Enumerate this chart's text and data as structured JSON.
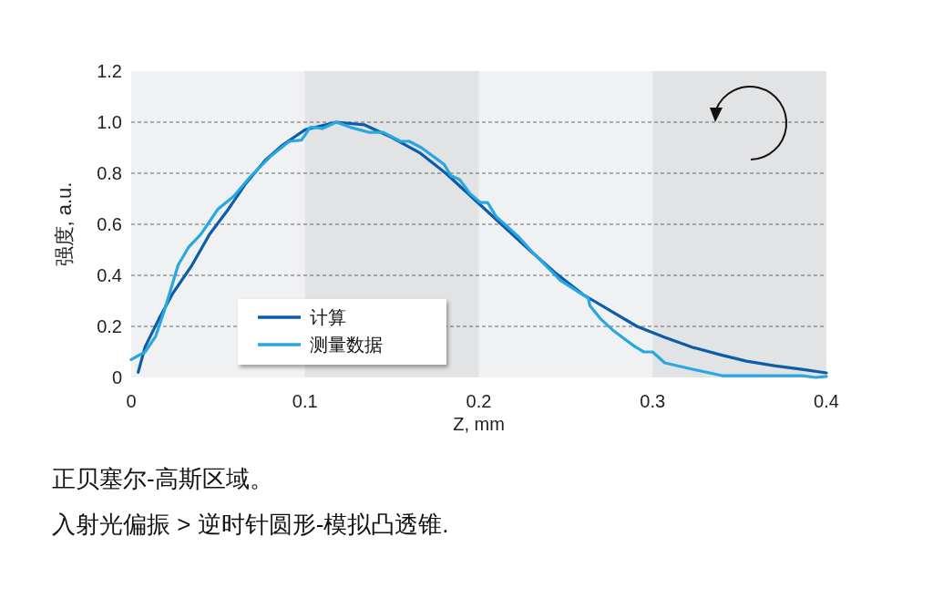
{
  "chart_data": {
    "type": "line",
    "xlabel": "Z, mm",
    "ylabel": "强度, a.u.",
    "xlim": [
      0,
      0.4
    ],
    "xticks": [
      0,
      0.1,
      0.2,
      0.3,
      0.4
    ],
    "ylim": [
      0,
      1.2
    ],
    "yticks": [
      0,
      0.2,
      0.4,
      0.6,
      0.8,
      {
        "value": 1,
        "label": "1.0"
      },
      1.2
    ],
    "grid": "y",
    "legend": "bottom left",
    "line_style": "solid",
    "bands": [
      {
        "axis": "x",
        "from": 0.1,
        "to": 0.2,
        "color": "#e2e3e5"
      },
      {
        "axis": "x",
        "from": 0.3,
        "to": 0.4,
        "color": "#e2e3e5"
      }
    ],
    "series": [
      {
        "name": "计算",
        "color": "#0d5ca8",
        "x": [
          0.004,
          0.008,
          0.016,
          0.024,
          0.035,
          0.045,
          0.056,
          0.066,
          0.077,
          0.087,
          0.1,
          0.118,
          0.134,
          0.15,
          0.166,
          0.181,
          0.197,
          0.213,
          0.229,
          0.244,
          0.26,
          0.276,
          0.291,
          0.307,
          0.323,
          0.339,
          0.354,
          0.37,
          0.386,
          0.4
        ],
        "values": [
          0.02,
          0.12,
          0.23,
          0.33,
          0.44,
          0.56,
          0.66,
          0.76,
          0.85,
          0.91,
          0.97,
          1.0,
          0.99,
          0.94,
          0.88,
          0.8,
          0.7,
          0.6,
          0.5,
          0.41,
          0.325,
          0.26,
          0.2,
          0.157,
          0.118,
          0.089,
          0.064,
          0.046,
          0.032,
          0.018
        ]
      },
      {
        "name": "测量数据",
        "color": "#29a8e0",
        "x": [
          0,
          0.008,
          0.014,
          0.019,
          0.027,
          0.033,
          0.04,
          0.05,
          0.059,
          0.069,
          0.08,
          0.091,
          0.098,
          0.103,
          0.105,
          0.11,
          0.118,
          0.126,
          0.137,
          0.145,
          0.155,
          0.16,
          0.167,
          0.176,
          0.18,
          0.184,
          0.189,
          0.195,
          0.201,
          0.205,
          0.21,
          0.215,
          0.223,
          0.231,
          0.239,
          0.247,
          0.263,
          0.264,
          0.27,
          0.277,
          0.284,
          0.29,
          0.295,
          0.3,
          0.307,
          0.323,
          0.34,
          0.37,
          0.386,
          0.394,
          0.4
        ],
        "values": [
          0.07,
          0.1,
          0.16,
          0.26,
          0.44,
          0.51,
          0.56,
          0.66,
          0.71,
          0.79,
          0.865,
          0.925,
          0.93,
          0.98,
          0.98,
          0.975,
          1.0,
          0.98,
          0.96,
          0.96,
          0.925,
          0.925,
          0.9,
          0.855,
          0.835,
          0.79,
          0.775,
          0.72,
          0.685,
          0.685,
          0.63,
          0.6,
          0.55,
          0.49,
          0.435,
          0.38,
          0.31,
          0.28,
          0.23,
          0.186,
          0.15,
          0.12,
          0.1,
          0.1,
          0.057,
          0.032,
          0.007,
          0.007,
          0.007,
          0,
          0.004
        ]
      }
    ],
    "annotations": [
      "正贝塞尔-高斯区域。",
      "入射光偏振 > 逆时针圆形-模拟凸透锥."
    ]
  }
}
